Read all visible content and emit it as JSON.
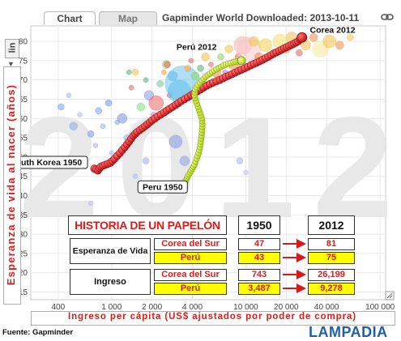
{
  "tabs": [
    {
      "label": "Chart"
    },
    {
      "label": "Map"
    }
  ],
  "window_title": "Gapminder World Downloaded: 2013-10-11",
  "icons": {
    "link": "link-icon",
    "scale_arrow": "chevron-down-icon",
    "resize": "resize-corner-icon"
  },
  "scale_button": {
    "label": "lin",
    "arrow": "▼"
  },
  "watermark_year": "2012",
  "source": "Fuente: Gapminder",
  "brand": "LAMPADIA",
  "colors": {
    "korea": "#d8191b",
    "peru": "#c8e82c",
    "axis_label": "#e11a1a",
    "table_header": "#e11a1a",
    "highlight": "#ffff00",
    "brand": "#1f5faa"
  },
  "chart_data": {
    "type": "scatter",
    "x_scale": "log",
    "xlabel": "Ingreso per cápita (US$ ajustados por poder de compra)",
    "ylabel": "Esperanza de vida al nacer (años)",
    "xlim": [
      250,
      110000
    ],
    "ylim": [
      13,
      84
    ],
    "x_ticks": [
      {
        "value": 400,
        "label": "400"
      },
      {
        "value": 1000,
        "label": "1 000"
      },
      {
        "value": 2000,
        "label": "2 000"
      },
      {
        "value": 4000,
        "label": "4 000"
      },
      {
        "value": 10000,
        "label": "10 000"
      },
      {
        "value": 20000,
        "label": "20 000"
      },
      {
        "value": 40000,
        "label": "40 000"
      },
      {
        "value": 100000,
        "label": "100 000"
      }
    ],
    "y_ticks": [
      15,
      20,
      25,
      30,
      35,
      40,
      45,
      50,
      55,
      60,
      65,
      70,
      75,
      80
    ],
    "grid": true,
    "series": [
      {
        "name": "South Korea",
        "color": "#d8191b",
        "points": [
          [
            743,
            47
          ],
          [
            790,
            46.5
          ],
          [
            830,
            47.5
          ],
          [
            900,
            48
          ],
          [
            980,
            48.5
          ],
          [
            1050,
            49.5
          ],
          [
            1150,
            51
          ],
          [
            1250,
            52.5
          ],
          [
            1350,
            54
          ],
          [
            1450,
            55.5
          ],
          [
            1550,
            56.5
          ],
          [
            1700,
            57.5
          ],
          [
            1850,
            58.5
          ],
          [
            2000,
            59.5
          ],
          [
            2200,
            60.5
          ],
          [
            2450,
            61.5
          ],
          [
            2700,
            62.5
          ],
          [
            3000,
            63.5
          ],
          [
            3300,
            64.5
          ],
          [
            3700,
            65.5
          ],
          [
            4100,
            66.5
          ],
          [
            4600,
            67.5
          ],
          [
            5100,
            68.5
          ],
          [
            5700,
            69.3
          ],
          [
            6400,
            70
          ],
          [
            7100,
            70.8
          ],
          [
            7900,
            71.5
          ],
          [
            8800,
            72.3
          ],
          [
            9800,
            73
          ],
          [
            10900,
            73.8
          ],
          [
            12100,
            74.5
          ],
          [
            13300,
            75.2
          ],
          [
            14700,
            76
          ],
          [
            16100,
            76.8
          ],
          [
            17700,
            77.5
          ],
          [
            19300,
            78.2
          ],
          [
            21000,
            78.8
          ],
          [
            22800,
            79.4
          ],
          [
            24500,
            80
          ],
          [
            26199,
            81
          ]
        ]
      },
      {
        "name": "Peru",
        "color": "#c8e82c",
        "points": [
          [
            3487,
            43
          ],
          [
            3580,
            44
          ],
          [
            3700,
            45
          ],
          [
            3850,
            46
          ],
          [
            4000,
            47
          ],
          [
            4150,
            48
          ],
          [
            4300,
            49.5
          ],
          [
            4450,
            51
          ],
          [
            4550,
            52.5
          ],
          [
            4620,
            54
          ],
          [
            4680,
            55.5
          ],
          [
            4720,
            57
          ],
          [
            4750,
            58.5
          ],
          [
            4700,
            60
          ],
          [
            4550,
            61.5
          ],
          [
            4400,
            63
          ],
          [
            4250,
            64.5
          ],
          [
            4150,
            66
          ],
          [
            4200,
            67.5
          ],
          [
            4400,
            68.7
          ],
          [
            4700,
            69.8
          ],
          [
            5000,
            70.8
          ],
          [
            5400,
            71.6
          ],
          [
            5800,
            72.4
          ],
          [
            6300,
            73.1
          ],
          [
            6800,
            73.7
          ],
          [
            7400,
            74.2
          ],
          [
            8100,
            74.6
          ],
          [
            8700,
            74.8
          ],
          [
            9278,
            75
          ]
        ]
      }
    ],
    "background_bubbles": [
      {
        "x": 420,
        "y": 63,
        "r": 4,
        "color": "#7aa2e0"
      },
      {
        "x": 480,
        "y": 66,
        "r": 3,
        "color": "#9db7ea"
      },
      {
        "x": 520,
        "y": 58,
        "r": 5,
        "color": "#8aa6e6"
      },
      {
        "x": 580,
        "y": 61,
        "r": 3,
        "color": "#a7bbef"
      },
      {
        "x": 640,
        "y": 49,
        "r": 3,
        "color": "#8ea2e8"
      },
      {
        "x": 700,
        "y": 56,
        "r": 4,
        "color": "#7892e0"
      },
      {
        "x": 760,
        "y": 53,
        "r": 3,
        "color": "#9fb0ee"
      },
      {
        "x": 800,
        "y": 62,
        "r": 4,
        "color": "#7aa0e2"
      },
      {
        "x": 860,
        "y": 58,
        "r": 3,
        "color": "#8fa9e8"
      },
      {
        "x": 950,
        "y": 64,
        "r": 4,
        "color": "#6f94de"
      },
      {
        "x": 1000,
        "y": 51,
        "r": 3,
        "color": "#a3b4ee"
      },
      {
        "x": 1100,
        "y": 59,
        "r": 3,
        "color": "#8e9ee6"
      },
      {
        "x": 1200,
        "y": 60,
        "r": 6,
        "color": "#7b8fe0"
      },
      {
        "x": 1300,
        "y": 55,
        "r": 4,
        "color": "#9aaaea"
      },
      {
        "x": 1400,
        "y": 68,
        "r": 3,
        "color": "#e86060"
      },
      {
        "x": 1500,
        "y": 72,
        "r": 4,
        "color": "#f3c04a"
      },
      {
        "x": 1650,
        "y": 63,
        "r": 5,
        "color": "#7de07a"
      },
      {
        "x": 1800,
        "y": 70,
        "r": 3,
        "color": "#4db06e"
      },
      {
        "x": 1900,
        "y": 66,
        "r": 6,
        "color": "#8a96e0"
      },
      {
        "x": 2050,
        "y": 61,
        "r": 3,
        "color": "#c86fd8"
      },
      {
        "x": 2150,
        "y": 64,
        "r": 9,
        "color": "#ee6464"
      },
      {
        "x": 2300,
        "y": 69,
        "r": 4,
        "color": "#69c38a"
      },
      {
        "x": 2450,
        "y": 72,
        "r": 3,
        "color": "#f39c3c"
      },
      {
        "x": 2550,
        "y": 74,
        "r": 5,
        "color": "#8ad06e"
      },
      {
        "x": 2700,
        "y": 66,
        "r": 3,
        "color": "#e86060"
      },
      {
        "x": 2850,
        "y": 71,
        "r": 6,
        "color": "#6aa8e8"
      },
      {
        "x": 3000,
        "y": 54,
        "r": 8,
        "color": "#8597e6"
      },
      {
        "x": 3200,
        "y": 67,
        "r": 14,
        "color": "#58b4e8"
      },
      {
        "x": 3400,
        "y": 69,
        "r": 22,
        "color": "#6cc4ee"
      },
      {
        "x": 3700,
        "y": 73,
        "r": 4,
        "color": "#f2a840"
      },
      {
        "x": 3900,
        "y": 75,
        "r": 3,
        "color": "#e86060"
      },
      {
        "x": 4200,
        "y": 71,
        "r": 5,
        "color": "#8ed270"
      },
      {
        "x": 4600,
        "y": 73,
        "r": 4,
        "color": "#4db06e"
      },
      {
        "x": 5000,
        "y": 76,
        "r": 5,
        "color": "#f3c04a"
      },
      {
        "x": 5500,
        "y": 74,
        "r": 3,
        "color": "#e86060"
      },
      {
        "x": 6000,
        "y": 72,
        "r": 6,
        "color": "#f08a48"
      },
      {
        "x": 6500,
        "y": 76,
        "r": 4,
        "color": "#8ad06e"
      },
      {
        "x": 7000,
        "y": 72,
        "r": 3,
        "color": "#c86fd8"
      },
      {
        "x": 7500,
        "y": 78,
        "r": 5,
        "color": "#f3c04a"
      },
      {
        "x": 8200,
        "y": 74,
        "r": 7,
        "color": "#f08a48"
      },
      {
        "x": 8800,
        "y": 76,
        "r": 4,
        "color": "#e86060"
      },
      {
        "x": 9500,
        "y": 79,
        "r": 11,
        "color": "#f3b4b4"
      },
      {
        "x": 10500,
        "y": 78,
        "r": 15,
        "color": "#f8c8c8"
      },
      {
        "x": 11500,
        "y": 80,
        "r": 6,
        "color": "#f3c04a"
      },
      {
        "x": 12500,
        "y": 76,
        "r": 5,
        "color": "#f08a48"
      },
      {
        "x": 14000,
        "y": 79,
        "r": 8,
        "color": "#f2d24a"
      },
      {
        "x": 16000,
        "y": 77,
        "r": 4,
        "color": "#e86060"
      },
      {
        "x": 18000,
        "y": 80,
        "r": 9,
        "color": "#f3e070"
      },
      {
        "x": 20000,
        "y": 78,
        "r": 5,
        "color": "#f08a48"
      },
      {
        "x": 22000,
        "y": 81,
        "r": 7,
        "color": "#f0c060"
      },
      {
        "x": 25000,
        "y": 77,
        "r": 4,
        "color": "#e86060"
      },
      {
        "x": 28000,
        "y": 79,
        "r": 6,
        "color": "#f3c04a"
      },
      {
        "x": 32000,
        "y": 81,
        "r": 5,
        "color": "#f08a48"
      },
      {
        "x": 36000,
        "y": 78,
        "r": 10,
        "color": "#f6e99a"
      },
      {
        "x": 42000,
        "y": 80,
        "r": 8,
        "color": "#f3c04a"
      },
      {
        "x": 50000,
        "y": 79,
        "r": 5,
        "color": "#f08a48"
      },
      {
        "x": 60000,
        "y": 81,
        "r": 4,
        "color": "#f3c04a"
      },
      {
        "x": 700,
        "y": 38,
        "r": 3,
        "color": "#b6bff0"
      },
      {
        "x": 1500,
        "y": 45,
        "r": 3,
        "color": "#aab6ee"
      },
      {
        "x": 1800,
        "y": 49,
        "r": 4,
        "color": "#9da9ec"
      },
      {
        "x": 3500,
        "y": 49,
        "r": 6,
        "color": "#8f9de8"
      },
      {
        "x": 9000,
        "y": 49,
        "r": 4,
        "color": "#a7b3ee"
      },
      {
        "x": 10000,
        "y": 46,
        "r": 3,
        "color": "#b4bdf0"
      },
      {
        "x": 2600,
        "y": 74,
        "r": 4,
        "color": "#e86060"
      },
      {
        "x": 1350,
        "y": 72,
        "r": 3,
        "color": "#4db06e"
      }
    ],
    "annotations": [
      {
        "text": "South Korea 1950",
        "x": 700,
        "y": 48.5,
        "boxed": true
      },
      {
        "text": "Peru 1950",
        "x": 2400,
        "y": 45.5,
        "boxed": true
      },
      {
        "text": "Perú 2012",
        "x": 4300,
        "y": 76.5,
        "boxed": false
      },
      {
        "text": "Corea  2012",
        "x": 30000,
        "y": 81,
        "boxed": false
      }
    ]
  },
  "summary_table": {
    "title": "HISTORIA DE UN PAPELÓN",
    "col_1950": "1950",
    "col_2012": "2012",
    "rows": [
      {
        "metric": "Esperanza de Vida",
        "entries": [
          {
            "country": "Corea del Sur",
            "v1950": "47",
            "v2012": "81",
            "highlight": false
          },
          {
            "country": "Perú",
            "v1950": "43",
            "v2012": "75",
            "highlight": true
          }
        ]
      },
      {
        "metric": "Ingreso",
        "entries": [
          {
            "country": "Corea del Sur",
            "v1950": "743",
            "v2012": "26,199",
            "highlight": false
          },
          {
            "country": "Perú",
            "v1950": "3,487",
            "v2012": "9,278",
            "highlight": true
          }
        ]
      }
    ]
  }
}
